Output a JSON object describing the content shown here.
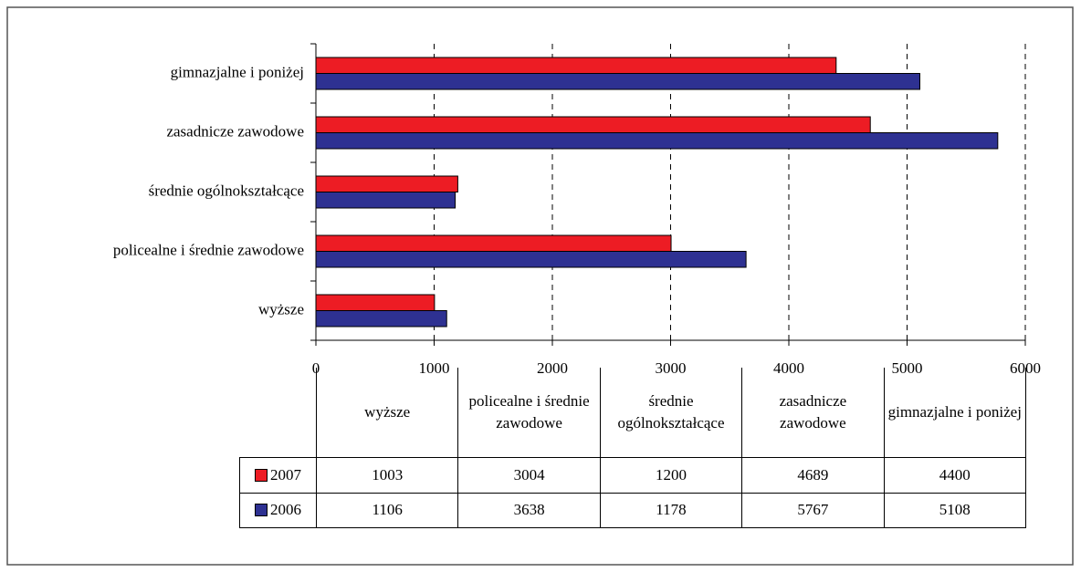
{
  "chart_data": {
    "type": "bar",
    "orientation": "horizontal",
    "categories": [
      "wyższe",
      "policealne i średnie zawodowe",
      "średnie ogólnokształcące",
      "zasadnicze zawodowe",
      "gimnazjalne i poniżej"
    ],
    "series": [
      {
        "name": "2007",
        "color": "#ed1c24",
        "values": [
          1003,
          3004,
          1200,
          4689,
          4400
        ]
      },
      {
        "name": "2006",
        "color": "#2e3192",
        "values": [
          1106,
          3638,
          1178,
          5767,
          5108
        ]
      }
    ],
    "xlim": [
      0,
      6000
    ],
    "xticks": [
      0,
      1000,
      2000,
      3000,
      4000,
      5000,
      6000
    ],
    "grid": true,
    "data_table": true
  }
}
